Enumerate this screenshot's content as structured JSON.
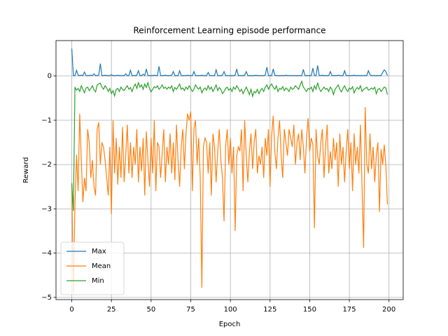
{
  "chart_data": {
    "type": "line",
    "title": "Reinforcement Learning episode performance",
    "x_label": "Epoch",
    "y_label": "Reward",
    "x": [
      0,
      1,
      2,
      3,
      4,
      5,
      6,
      7,
      8,
      9,
      10,
      11,
      12,
      13,
      14,
      15,
      16,
      17,
      18,
      19,
      20,
      21,
      22,
      23,
      24,
      25,
      26,
      27,
      28,
      29,
      30,
      31,
      32,
      33,
      34,
      35,
      36,
      37,
      38,
      39,
      40,
      41,
      42,
      43,
      44,
      45,
      46,
      47,
      48,
      49,
      50,
      51,
      52,
      53,
      54,
      55,
      56,
      57,
      58,
      59,
      60,
      61,
      62,
      63,
      64,
      65,
      66,
      67,
      68,
      69,
      70,
      71,
      72,
      73,
      74,
      75,
      76,
      77,
      78,
      79,
      80,
      81,
      82,
      83,
      84,
      85,
      86,
      87,
      88,
      89,
      90,
      91,
      92,
      93,
      94,
      95,
      96,
      97,
      98,
      99,
      100,
      101,
      102,
      103,
      104,
      105,
      106,
      107,
      108,
      109,
      110,
      111,
      112,
      113,
      114,
      115,
      116,
      117,
      118,
      119,
      120,
      121,
      122,
      123,
      124,
      125,
      126,
      127,
      128,
      129,
      130,
      131,
      132,
      133,
      134,
      135,
      136,
      137,
      138,
      139,
      140,
      141,
      142,
      143,
      144,
      145,
      146,
      147,
      148,
      149,
      150,
      151,
      152,
      153,
      154,
      155,
      156,
      157,
      158,
      159,
      160,
      161,
      162,
      163,
      164,
      165,
      166,
      167,
      168,
      169,
      170,
      171,
      172,
      173,
      174,
      175,
      176,
      177,
      178,
      179,
      180,
      181,
      182,
      183,
      184,
      185,
      186,
      187,
      188,
      189,
      190,
      191,
      192,
      193,
      194,
      195,
      196,
      197,
      198,
      199
    ],
    "series": [
      {
        "name": "Max",
        "color": "#1f77b4",
        "values": [
          0.62,
          0.01,
          0.01,
          0.13,
          0.02,
          0.01,
          0.02,
          0.01,
          0.09,
          0.01,
          0.01,
          0.01,
          0.02,
          0.01,
          0.05,
          0.01,
          0.01,
          0.02,
          0.28,
          0.01,
          0.01,
          0.02,
          0.01,
          0.01,
          0.01,
          0.03,
          0.01,
          0.01,
          0.01,
          0.02,
          0.01,
          0.01,
          0.01,
          0.01,
          0.05,
          0.01,
          0.01,
          0.13,
          0.01,
          0.01,
          0.01,
          0.02,
          0.12,
          0.01,
          0.01,
          0.04,
          0.01,
          0.16,
          0.01,
          0.01,
          0.01,
          0.01,
          0.02,
          0.01,
          0.01,
          0.22,
          0.01,
          0.01,
          0.01,
          0.02,
          0.01,
          0.01,
          0.01,
          0.02,
          0.1,
          0.01,
          0.01,
          0.01,
          0.12,
          0.01,
          0.01,
          0.01,
          0.01,
          0.02,
          0.01,
          0.01,
          0.01,
          0.1,
          0.01,
          0.01,
          0.01,
          0.01,
          0.02,
          0.01,
          0.01,
          0.01,
          0.08,
          0.01,
          0.01,
          0.01,
          0.01,
          0.14,
          0.01,
          0.01,
          0.01,
          0.02,
          0.1,
          0.01,
          0.01,
          0.01,
          0.01,
          0.01,
          0.01,
          0.02,
          0.16,
          0.01,
          0.01,
          0.01,
          0.01,
          0.02,
          0.1,
          0.01,
          0.01,
          0.01,
          0.01,
          0.01,
          0.02,
          0.01,
          0.01,
          0.01,
          0.01,
          0.01,
          0.02,
          0.2,
          0.01,
          0.01,
          0.01,
          0.16,
          0.02,
          0.01,
          0.01,
          0.01,
          0.01,
          0.01,
          0.01,
          0.02,
          0.01,
          0.01,
          0.01,
          0.01,
          0.01,
          0.01,
          0.01,
          0.01,
          0.01,
          0.01,
          0.15,
          0.01,
          0.01,
          0.01,
          0.01,
          0.01,
          0.18,
          0.01,
          0.01,
          0.24,
          0.01,
          0.01,
          0.02,
          0.01,
          0.01,
          0.01,
          0.01,
          0.1,
          0.01,
          0.01,
          0.01,
          0.01,
          0.02,
          0.01,
          0.01,
          0.01,
          0.12,
          0.01,
          0.01,
          0.01,
          0.01,
          0.01,
          0.02,
          0.01,
          0.01,
          0.01,
          0.01,
          0.01,
          0.01,
          0.01,
          0.01,
          0.12,
          0.03,
          0.01,
          0.01,
          0.01,
          0.01,
          0.01,
          0.01,
          0.01,
          0.08,
          0.14,
          0.1,
          0.01
        ]
      },
      {
        "name": "Mean",
        "color": "#ff7f0e",
        "values": [
          -2.42,
          -4.9,
          -2.9,
          -1.78,
          -2.6,
          -0.85,
          -1.9,
          -2.85,
          -2.3,
          -2.6,
          -1.2,
          -1.5,
          -2.3,
          -1.9,
          -2.5,
          -2.7,
          -1.2,
          -1.05,
          -2.0,
          -1.5,
          -1.6,
          -1.9,
          -2.3,
          -2.7,
          -1.6,
          -3.12,
          -1.0,
          -2.2,
          -1.4,
          -2.45,
          -1.6,
          -2.3,
          -1.15,
          -2.4,
          -1.8,
          -1.1,
          -2.2,
          -1.5,
          -2.3,
          -1.6,
          -2.0,
          -1.2,
          -2.4,
          -1.6,
          -2.15,
          -1.4,
          -2.7,
          -1.25,
          -1.9,
          -2.5,
          -1.4,
          -2.2,
          -1.0,
          -2.6,
          -1.5,
          -1.6,
          -2.3,
          -1.75,
          -1.2,
          -2.4,
          -1.6,
          -2.0,
          -1.3,
          -2.2,
          -1.5,
          -2.35,
          -1.1,
          -1.9,
          -2.5,
          -1.6,
          -1.2,
          -2.1,
          -1.3,
          -0.85,
          -1.0,
          -0.8,
          -2.6,
          -1.2,
          -1.0,
          -2.0,
          -1.4,
          -2.3,
          -4.78,
          -1.6,
          -1.4,
          -1.5,
          -2.2,
          -1.5,
          -2.7,
          -1.3,
          -1.6,
          -2.4,
          -1.7,
          -1.2,
          -1.9,
          -2.3,
          -3.28,
          -1.6,
          -1.2,
          -2.0,
          -1.4,
          -2.2,
          -1.6,
          -3.5,
          -1.8,
          -1.6,
          -1.7,
          -1.2,
          -2.6,
          -1.0,
          -1.8,
          -2.4,
          -1.7,
          -1.3,
          -2.1,
          -1.5,
          -1.2,
          -2.2,
          -1.8,
          -2.0,
          -1.6,
          -2.3,
          -1.4,
          -1.8,
          -1.2,
          -2.5,
          -1.35,
          -0.9,
          -1.7,
          -2.1,
          -1.4,
          -1.0,
          -1.8,
          -2.3,
          -1.2,
          -1.5,
          -1.8,
          -1.2,
          -1.4,
          -1.6,
          -1.1,
          -2.0,
          -1.5,
          -1.3,
          -1.9,
          -1.2,
          -1.6,
          -2.2,
          -1.4,
          -0.95,
          -1.7,
          -1.4,
          -1.55,
          -3.44,
          -1.2,
          -1.8,
          -2.0,
          -1.5,
          -1.2,
          -2.3,
          -1.6,
          -1.1,
          -2.2,
          -1.7,
          -2.1,
          -1.4,
          -1.9,
          -1.5,
          -2.5,
          -1.3,
          -2.0,
          -1.6,
          -2.4,
          -1.7,
          -1.2,
          -2.1,
          -1.5,
          -2.6,
          -1.3,
          -2.0,
          -1.6,
          -2.2,
          -1.1,
          -2.5,
          -3.88,
          -0.7,
          -2.0,
          -2.2,
          -1.3,
          -2.1,
          -1.6,
          -2.4,
          -1.8,
          -1.5,
          -3.07,
          -1.65,
          -2.0,
          -1.55,
          -2.0,
          -2.9
        ]
      },
      {
        "name": "Min",
        "color": "#2ca02c",
        "values": [
          -2.42,
          -3.05,
          -0.25,
          -0.32,
          -0.28,
          -0.35,
          -0.22,
          -0.3,
          -0.38,
          -0.27,
          -0.25,
          -0.33,
          -0.28,
          -0.22,
          -0.31,
          -0.36,
          -0.2,
          -0.18,
          -0.16,
          -0.25,
          -0.3,
          -0.22,
          -0.27,
          -0.35,
          -0.28,
          -0.4,
          -0.33,
          -0.45,
          -0.3,
          -0.28,
          -0.35,
          -0.25,
          -0.3,
          -0.33,
          -0.27,
          -0.22,
          -0.3,
          -0.26,
          -0.35,
          -0.25,
          -0.18,
          -0.28,
          -0.15,
          -0.25,
          -0.2,
          -0.3,
          -0.18,
          -0.26,
          -0.15,
          -0.28,
          -0.36,
          -0.3,
          -0.24,
          -0.27,
          -0.22,
          -0.3,
          -0.26,
          -0.2,
          -0.28,
          -0.25,
          -0.3,
          -0.25,
          -0.28,
          -0.22,
          -0.35,
          -0.26,
          -0.3,
          -0.24,
          -0.18,
          -0.3,
          -0.27,
          -0.33,
          -0.25,
          -0.3,
          -0.22,
          -0.28,
          -0.35,
          -0.3,
          -0.2,
          -0.26,
          -0.3,
          -0.25,
          -0.38,
          -0.3,
          -0.27,
          -0.32,
          -0.22,
          -0.3,
          -0.25,
          -0.35,
          -0.28,
          -0.2,
          -0.33,
          -0.26,
          -0.3,
          -0.4,
          -0.35,
          -0.28,
          -0.25,
          -0.32,
          -0.28,
          -0.35,
          -0.25,
          -0.3,
          -0.22,
          -0.28,
          -0.35,
          -0.3,
          -0.4,
          -0.32,
          -0.25,
          -0.33,
          -0.42,
          -0.3,
          -0.46,
          -0.35,
          -0.38,
          -0.3,
          -0.4,
          -0.32,
          -0.28,
          -0.35,
          -0.25,
          -0.2,
          -0.3,
          -0.22,
          -0.18,
          -0.25,
          -0.3,
          -0.22,
          -0.35,
          -0.28,
          -0.3,
          -0.24,
          -0.33,
          -0.27,
          -0.3,
          -0.35,
          -0.25,
          -0.3,
          -0.28,
          -0.22,
          -0.26,
          -0.3,
          -0.2,
          -0.12,
          -0.25,
          -0.3,
          -0.35,
          -0.28,
          -0.3,
          -0.25,
          -0.35,
          -0.22,
          -0.3,
          -0.15,
          -0.28,
          -0.35,
          -0.3,
          -0.25,
          -0.3,
          -0.28,
          -0.35,
          -0.25,
          -0.3,
          -0.42,
          -0.3,
          -0.25,
          -0.2,
          -0.3,
          -0.36,
          -0.28,
          -0.22,
          -0.3,
          -0.35,
          -0.27,
          -0.3,
          -0.24,
          -0.38,
          -0.3,
          -0.26,
          -0.3,
          -0.22,
          -0.35,
          -0.3,
          -0.28,
          -0.25,
          -0.32,
          -0.3,
          -0.27,
          -0.3,
          -0.25,
          -0.4,
          -0.3,
          -0.28,
          -0.35,
          -0.3,
          -0.25,
          -0.27,
          -0.42
        ]
      }
    ],
    "xlim": [
      -9.95,
      208.95
    ],
    "ylim": [
      -5.05,
      0.8
    ],
    "xticks": [
      0,
      25,
      50,
      75,
      100,
      125,
      150,
      175,
      200
    ],
    "yticks": [
      {
        "value": -5,
        "label": "−5"
      },
      {
        "value": -4,
        "label": "−4"
      },
      {
        "value": -3,
        "label": "−3"
      },
      {
        "value": -2,
        "label": "−2"
      },
      {
        "value": -1,
        "label": "−1"
      },
      0
    ],
    "grid": true,
    "legend": "lower left"
  }
}
